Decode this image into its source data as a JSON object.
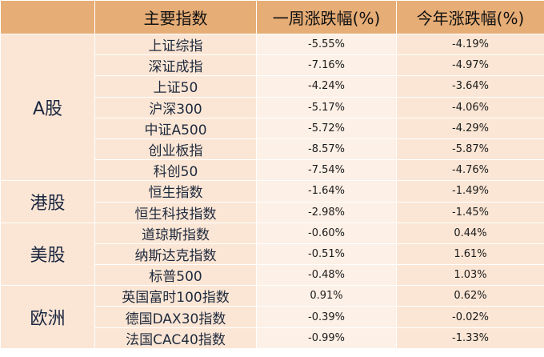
{
  "header": {
    "col_index": "主要指数",
    "col_week": "一周涨跌幅(%)",
    "col_ytd": "今年涨跌幅(%)"
  },
  "groups": [
    {
      "label": "A股",
      "rows": [
        {
          "name": "上证综指",
          "week": "-5.55%",
          "ytd": "-4.19%"
        },
        {
          "name": "深证成指",
          "week": "-7.16%",
          "ytd": "-4.97%"
        },
        {
          "name": "上证50",
          "week": "-4.24%",
          "ytd": "-3.64%"
        },
        {
          "name": "沪深300",
          "week": "-5.17%",
          "ytd": "-4.06%"
        },
        {
          "name": "中证A500",
          "week": "-5.72%",
          "ytd": "-4.29%"
        },
        {
          "name": "创业板指",
          "week": "-8.57%",
          "ytd": "-5.87%"
        },
        {
          "name": "科创50",
          "week": "-7.54%",
          "ytd": "-4.76%"
        }
      ]
    },
    {
      "label": "港股",
      "rows": [
        {
          "name": "恒生指数",
          "week": "-1.64%",
          "ytd": "-1.49%"
        },
        {
          "name": "恒生科技指数",
          "week": "-2.98%",
          "ytd": "-1.45%"
        }
      ]
    },
    {
      "label": "美股",
      "rows": [
        {
          "name": "道琼斯指数",
          "week": "-0.60%",
          "ytd": "0.44%"
        },
        {
          "name": "纳斯达克指数",
          "week": "-0.51%",
          "ytd": "1.61%"
        },
        {
          "name": "标普500",
          "week": "-0.48%",
          "ytd": "1.03%"
        }
      ]
    },
    {
      "label": "欧洲",
      "rows": [
        {
          "name": "英国富时100指数",
          "week": "0.91%",
          "ytd": "0.62%"
        },
        {
          "name": "德国DAX30指数",
          "week": "-0.39%",
          "ytd": "-0.02%"
        },
        {
          "name": "法国CAC40指数",
          "week": "-0.99%",
          "ytd": "-1.33%"
        }
      ]
    }
  ]
}
